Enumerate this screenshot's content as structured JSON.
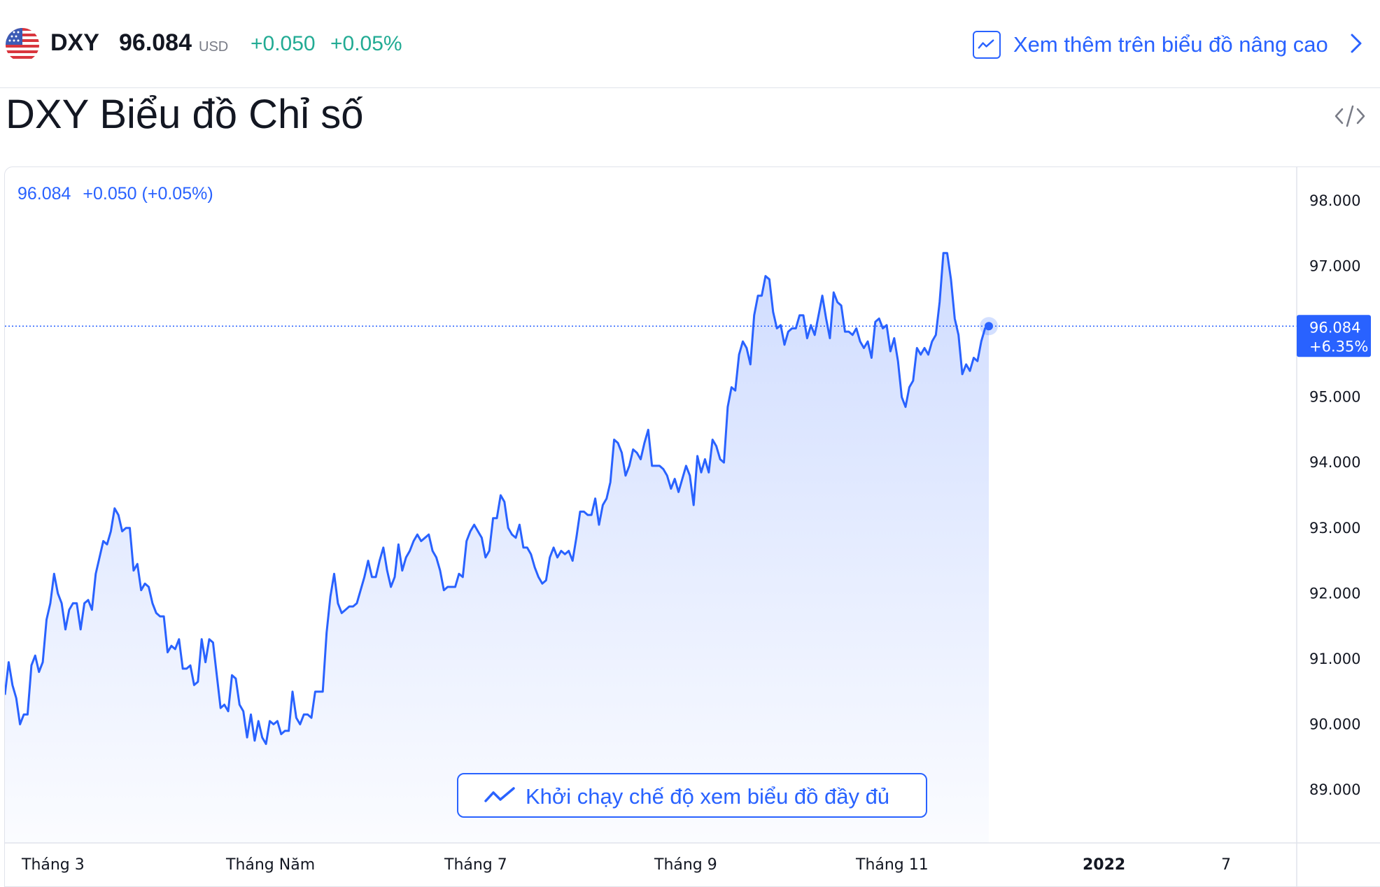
{
  "header": {
    "symbol": "DXY",
    "price": "96.084",
    "currency": "USD",
    "change_abs": "+0.050",
    "change_pct": "+0.05%",
    "advanced_link": "Xem thêm trên biểu đồ nâng cao",
    "icons": {
      "flag": "us-flag-icon",
      "chart": "chart-line-icon",
      "chevron": "chevron-right-icon",
      "embed": "code-embed-icon"
    }
  },
  "title": "DXY Biểu đồ Chỉ số",
  "chart": {
    "legend_price": "96.084",
    "legend_change": "+0.050 (+0.05%)",
    "fullscreen_label": "Khởi chạy chế độ xem biểu đồ đầy đủ",
    "last_price_badge": "96.084",
    "last_change_badge": "+6.35%",
    "colors": {
      "line": "#2962ff",
      "fill": "#d6e0ff",
      "badge": "#2962ff"
    }
  },
  "chart_data": {
    "type": "area",
    "title": "",
    "y_ticks": [
      "98.000",
      "97.000",
      "96.000",
      "95.000",
      "94.000",
      "93.000",
      "92.000",
      "91.000",
      "90.000",
      "89.000"
    ],
    "x_ticks": [
      "Tháng 3",
      "Tháng Năm",
      "Tháng 7",
      "Tháng 9",
      "Tháng 11",
      "2022",
      "7"
    ],
    "ylim": [
      89.0,
      98.0
    ],
    "grid": false,
    "series": [
      {
        "values": [
          90.45,
          90.95,
          90.6,
          90.4,
          90.0,
          90.15,
          90.15,
          90.9,
          91.05,
          90.8,
          90.95,
          91.6,
          91.85,
          92.3,
          92.0,
          91.85,
          91.45,
          91.75,
          91.85,
          91.85,
          91.45,
          91.85,
          91.9,
          91.75,
          92.3,
          92.55,
          92.8,
          92.75,
          92.95,
          93.3,
          93.2,
          92.95,
          93.0,
          93.0,
          92.35,
          92.45,
          92.05,
          92.15,
          92.1,
          91.85,
          91.7,
          91.65,
          91.65,
          91.1,
          91.2,
          91.15,
          91.3,
          90.85,
          90.85,
          90.9,
          90.6,
          90.65,
          91.3,
          90.95,
          91.3,
          91.25,
          90.75,
          90.25,
          90.3,
          90.2,
          90.75,
          90.7,
          90.3,
          90.2,
          89.8,
          90.15,
          89.75,
          90.05,
          89.8,
          89.7,
          90.05,
          90.0,
          90.05,
          89.85,
          89.9,
          89.9,
          90.5,
          90.1,
          90.0,
          90.15,
          90.15,
          90.1,
          90.5,
          90.5,
          90.5,
          91.4,
          91.95,
          92.3,
          91.85,
          91.7,
          91.75,
          91.8,
          91.8,
          91.85,
          92.05,
          92.25,
          92.5,
          92.25,
          92.25,
          92.5,
          92.7,
          92.35,
          92.1,
          92.25,
          92.75,
          92.35,
          92.55,
          92.65,
          92.8,
          92.9,
          92.8,
          92.85,
          92.9,
          92.65,
          92.55,
          92.35,
          92.05,
          92.1,
          92.1,
          92.1,
          92.3,
          92.25,
          92.8,
          92.95,
          93.05,
          92.95,
          92.85,
          92.55,
          92.65,
          93.15,
          93.15,
          93.5,
          93.4,
          93.0,
          92.9,
          92.85,
          93.05,
          92.7,
          92.7,
          92.6,
          92.4,
          92.25,
          92.15,
          92.2,
          92.55,
          92.7,
          92.55,
          92.65,
          92.6,
          92.65,
          92.5,
          92.85,
          93.25,
          93.25,
          93.2,
          93.2,
          93.45,
          93.05,
          93.35,
          93.45,
          93.7,
          94.35,
          94.3,
          94.15,
          93.8,
          93.95,
          94.2,
          94.15,
          94.05,
          94.3,
          94.5,
          93.95,
          93.95,
          93.95,
          93.9,
          93.8,
          93.6,
          93.75,
          93.55,
          93.75,
          93.95,
          93.8,
          93.35,
          94.1,
          93.85,
          94.05,
          93.85,
          94.35,
          94.25,
          94.05,
          94.0,
          94.85,
          95.15,
          95.1,
          95.65,
          95.85,
          95.75,
          95.5,
          96.25,
          96.55,
          96.55,
          96.85,
          96.8,
          96.3,
          96.05,
          96.1,
          95.8,
          96.0,
          96.05,
          96.05,
          96.25,
          96.25,
          95.9,
          96.1,
          95.95,
          96.25,
          96.55,
          96.2,
          95.9,
          96.6,
          96.45,
          96.4,
          96.0,
          96.0,
          95.95,
          96.05,
          95.85,
          95.75,
          95.85,
          95.6,
          96.15,
          96.2,
          96.05,
          96.1,
          95.7,
          95.9,
          95.55,
          95.0,
          94.85,
          95.15,
          95.25,
          95.75,
          95.65,
          95.75,
          95.65,
          95.85,
          95.95,
          96.45,
          97.2,
          97.2,
          96.8,
          96.2,
          95.95,
          95.35,
          95.5,
          95.4,
          95.6,
          95.55,
          95.85,
          96.05,
          96.084
        ]
      }
    ],
    "last_value": 96.084
  }
}
